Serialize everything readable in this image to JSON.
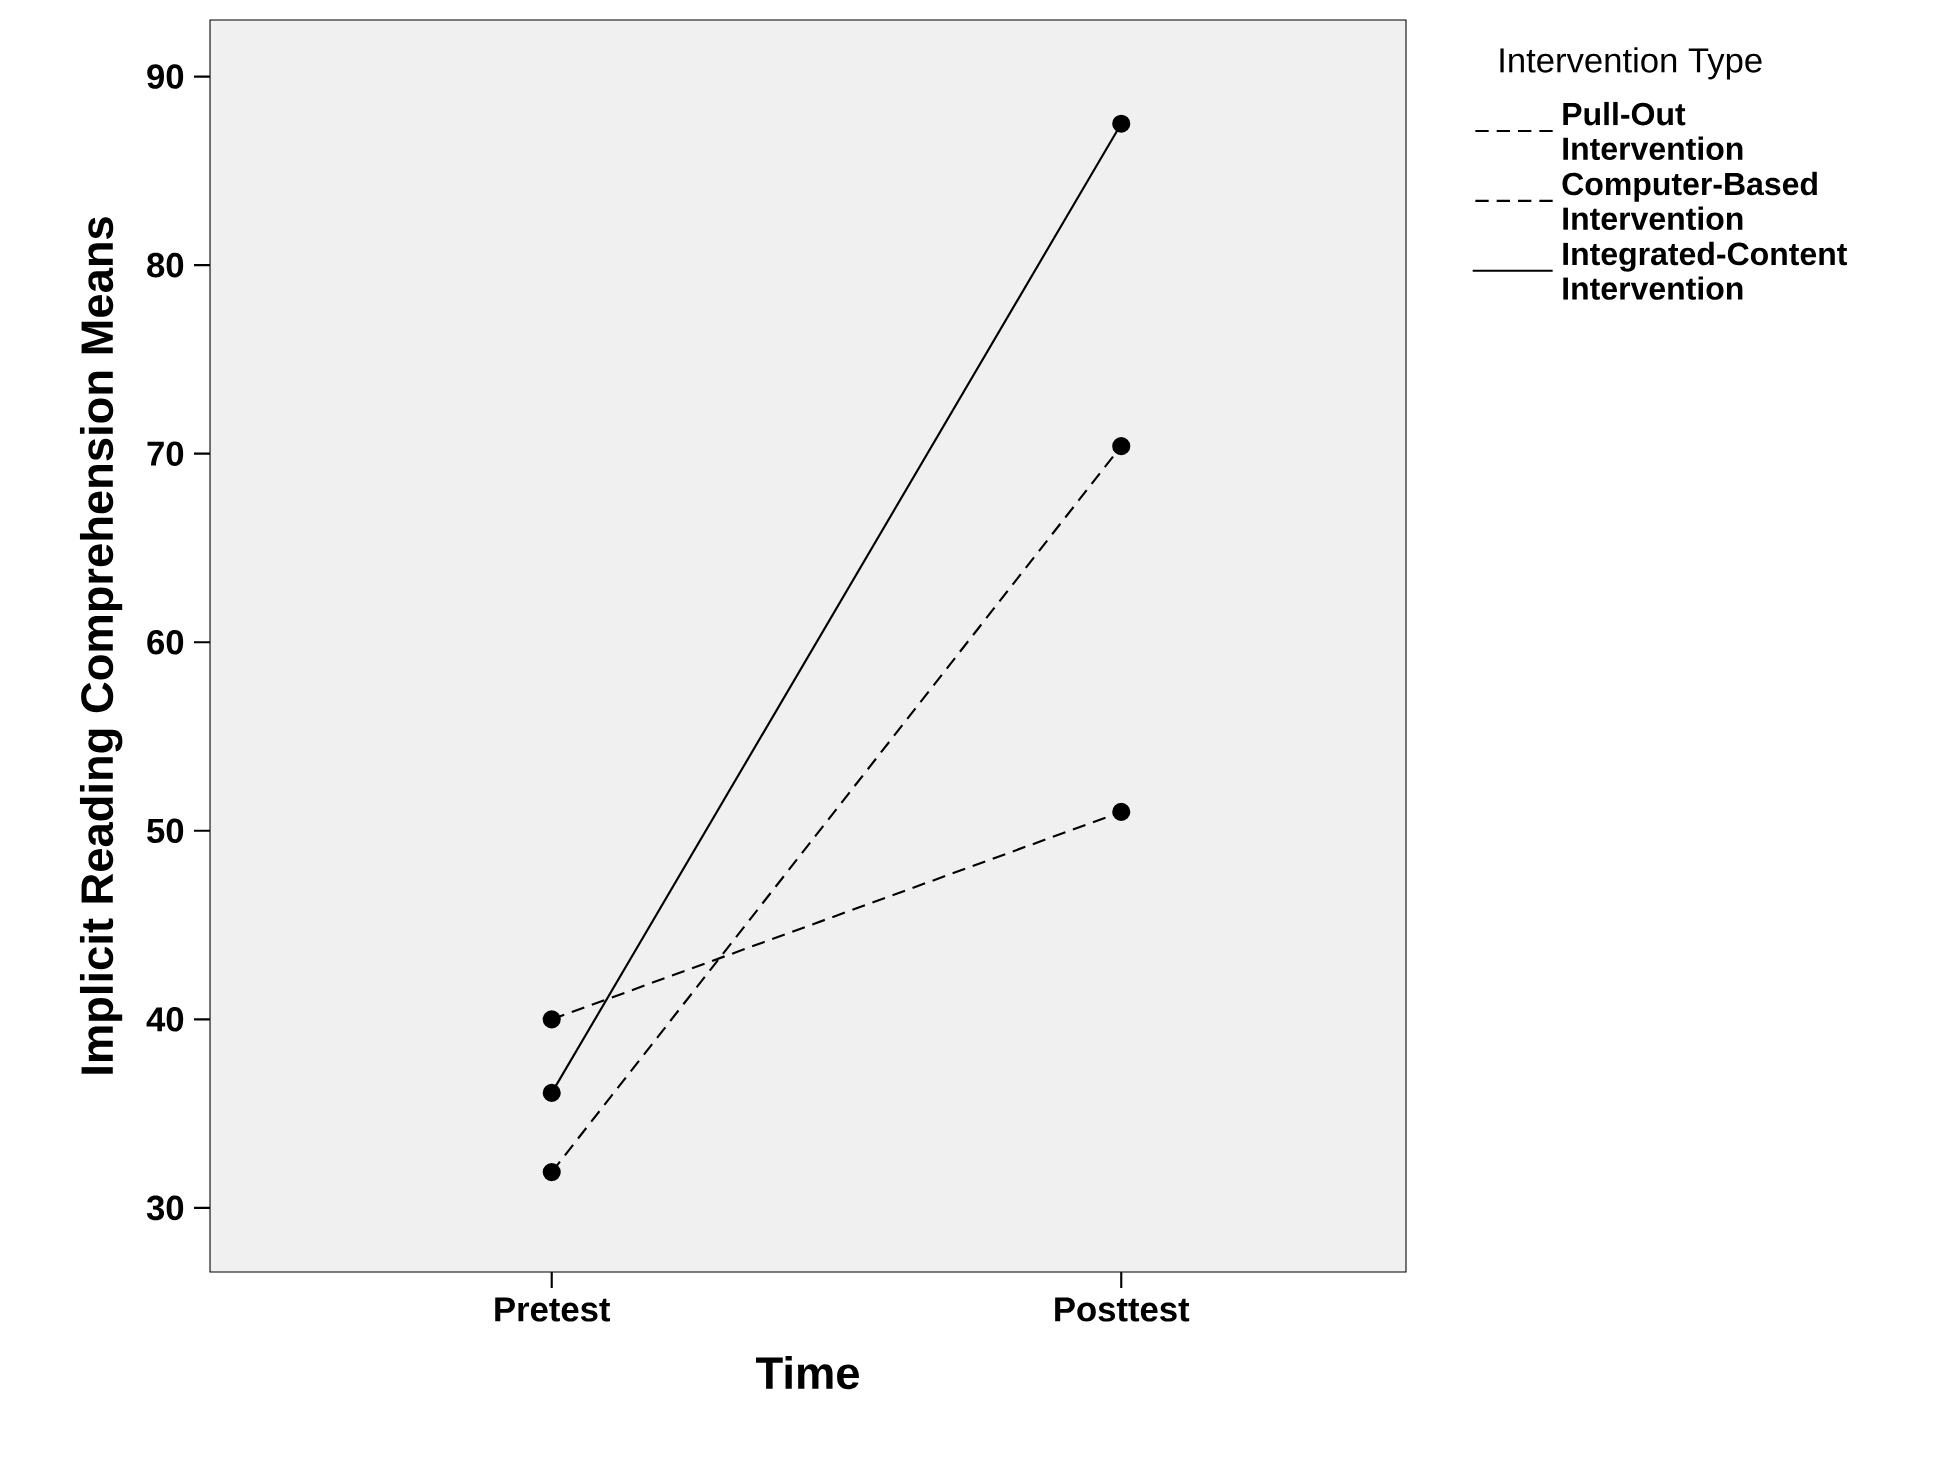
{
  "chart_data": {
    "type": "line",
    "xlabel": "Time",
    "ylabel": "Implicit Reading Comprehension Means",
    "legend_title": "Intervention Type",
    "categories": [
      "Pretest",
      "Posttest"
    ],
    "series": [
      {
        "name": "Pull-Out Intervention",
        "color": "#000000",
        "line_style": "dashed",
        "values": [
          31.9,
          70.4
        ]
      },
      {
        "name": "Computer-Based Intervention",
        "color": "#000000",
        "line_style": "dashed",
        "values": [
          40.0,
          51.0
        ]
      },
      {
        "name": "Integrated-Content Intervention",
        "color": "#000000",
        "line_style": "solid",
        "values": [
          36.1,
          87.5
        ]
      }
    ],
    "ylim": [
      26.6,
      93
    ],
    "yticks": [
      30,
      40,
      50,
      60,
      70,
      80,
      90
    ],
    "grid": false,
    "legend": "top right",
    "marker": "circle"
  }
}
